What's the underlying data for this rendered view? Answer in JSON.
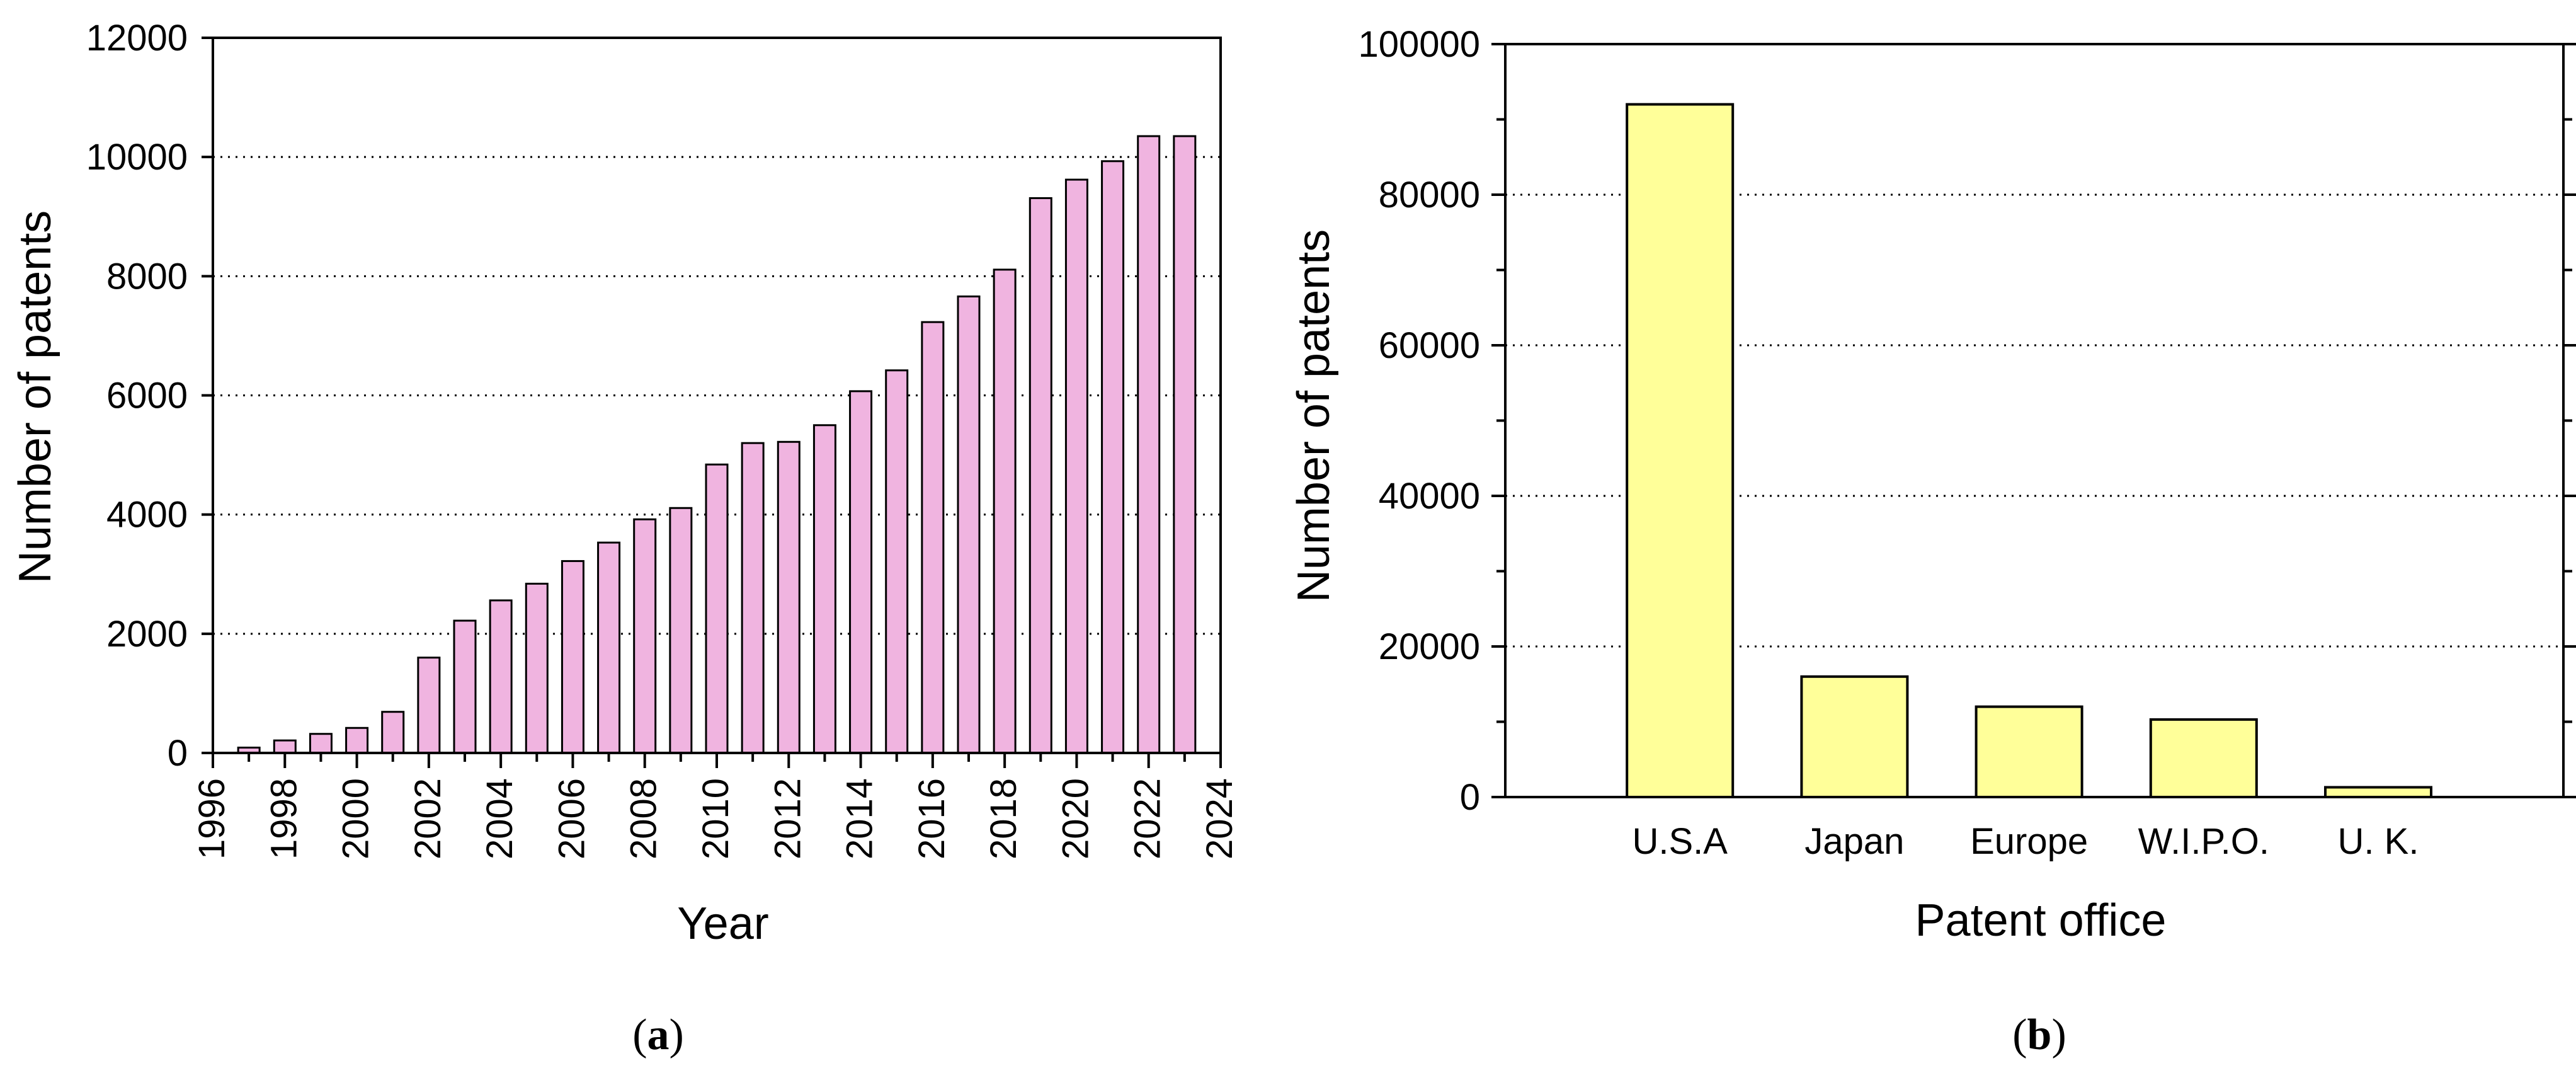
{
  "chart_data": [
    {
      "type": "bar",
      "panel": "a",
      "caption": "(a)",
      "caption_letter": "a",
      "xlabel": "Year",
      "ylabel": "Number of patents",
      "ylim": [
        0,
        12000
      ],
      "yticks": [
        "0",
        "2000",
        "4000",
        "6000",
        "8000",
        "10000",
        "12000"
      ],
      "xlim": [
        1996,
        2024
      ],
      "xticks": [
        "1996",
        "1998",
        "2000",
        "2002",
        "2004",
        "2006",
        "2008",
        "2010",
        "2012",
        "2014",
        "2016",
        "2018",
        "2020",
        "2022",
        "2024"
      ],
      "grid": "horizontal dotted",
      "bar_color": "#f0b4e0",
      "categories": [
        1997,
        1998,
        1999,
        2000,
        2001,
        2002,
        2003,
        2004,
        2005,
        2006,
        2007,
        2008,
        2009,
        2010,
        2011,
        2012,
        2013,
        2014,
        2015,
        2016,
        2017,
        2018,
        2019,
        2020,
        2021,
        2022,
        2023
      ],
      "values": [
        90,
        210,
        320,
        420,
        690,
        1600,
        2220,
        2560,
        2840,
        3220,
        3530,
        3920,
        4110,
        4840,
        5200,
        5220,
        5500,
        6070,
        6420,
        7230,
        7660,
        8110,
        9310,
        9620,
        9930,
        10350,
        10350
      ]
    },
    {
      "type": "bar",
      "panel": "b",
      "caption": "(b)",
      "caption_letter": "b",
      "xlabel": "Patent office",
      "ylabel": "Number of patents",
      "ylim": [
        0,
        100000
      ],
      "yticks": [
        "0",
        "20000",
        "40000",
        "60000",
        "80000",
        "100000"
      ],
      "grid": "horizontal dotted",
      "bar_color": "#ffff99",
      "categories": [
        "U.S.A",
        "Japan",
        "Europe",
        "W.I.P.O.",
        "U. K."
      ],
      "values": [
        92000,
        16000,
        12000,
        10300,
        1300
      ]
    }
  ]
}
